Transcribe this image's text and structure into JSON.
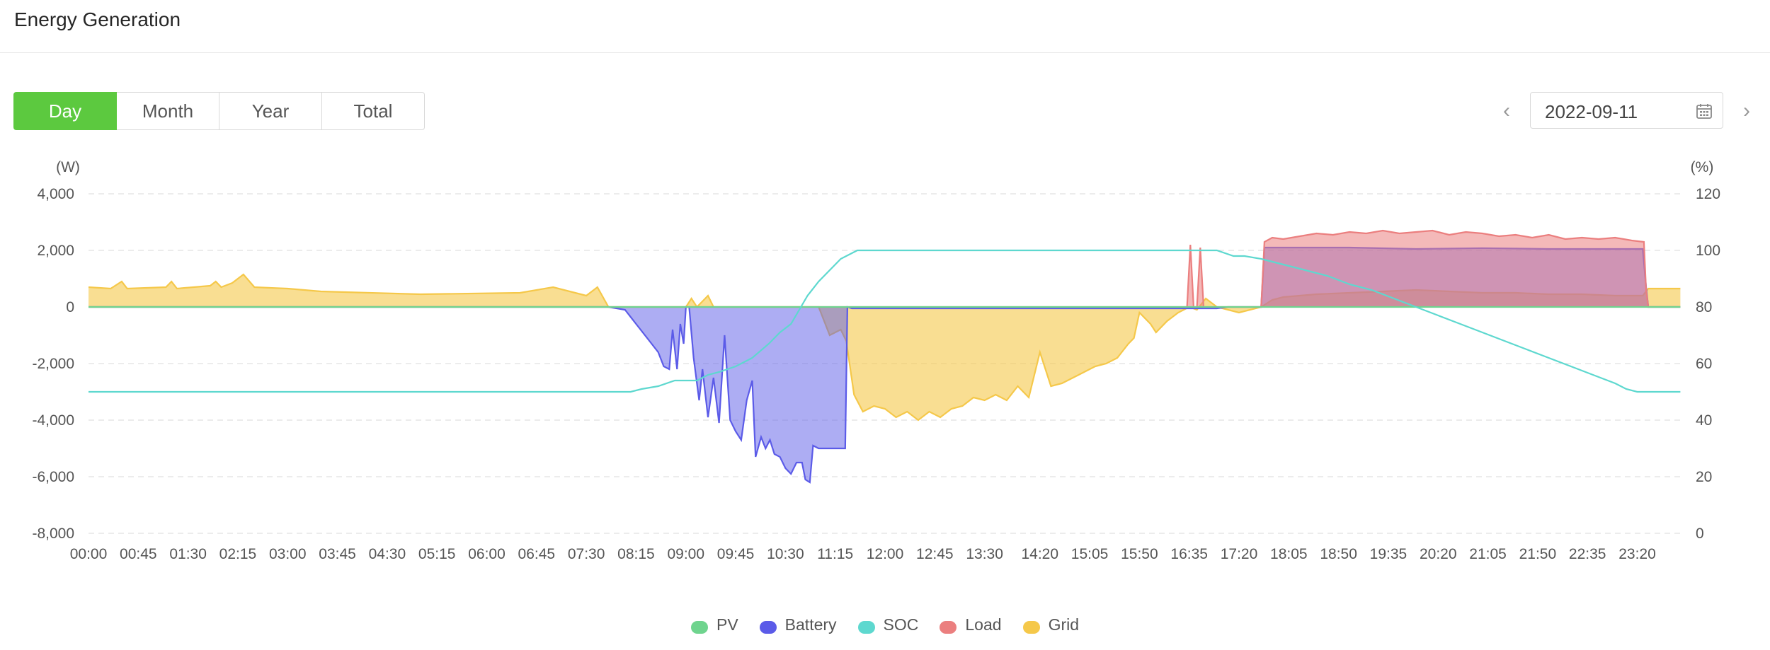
{
  "header": {
    "title": "Energy Generation"
  },
  "range_tabs": [
    {
      "label": "Day",
      "active": true
    },
    {
      "label": "Month",
      "active": false
    },
    {
      "label": "Year",
      "active": false
    },
    {
      "label": "Total",
      "active": false
    }
  ],
  "date_picker": {
    "value": "2022-09-11",
    "prev_icon": "chevron-left-icon",
    "next_icon": "chevron-right-icon",
    "icon": "calendar-icon"
  },
  "chart_data": {
    "type": "area",
    "left_axis_unit": "(W)",
    "right_axis_unit": "(%)",
    "ylim": [
      -8000,
      4000
    ],
    "y_ticks": [
      "4,000",
      "2,000",
      "0",
      "-2,000",
      "-4,000",
      "-6,000",
      "-8,000"
    ],
    "y2lim": [
      0,
      120
    ],
    "y2_ticks": [
      "120",
      "100",
      "80",
      "60",
      "40",
      "20",
      "0"
    ],
    "x_ticks": [
      "00:00",
      "00:45",
      "01:30",
      "02:15",
      "03:00",
      "03:45",
      "04:30",
      "05:15",
      "06:00",
      "06:45",
      "07:30",
      "08:15",
      "09:00",
      "09:45",
      "10:30",
      "11:15",
      "12:00",
      "12:45",
      "13:30",
      "14:20",
      "15:05",
      "15:50",
      "16:35",
      "17:20",
      "18:05",
      "18:50",
      "19:35",
      "20:20",
      "21:05",
      "21:50",
      "22:35",
      "23:20"
    ],
    "grid": true,
    "legend_position": "bottom",
    "series": [
      {
        "name": "PV",
        "color": "#6fd48e",
        "axis": "left",
        "points": [
          [
            "00:00",
            0
          ],
          [
            "23:59",
            0
          ]
        ]
      },
      {
        "name": "Battery",
        "color": "#5b5be8",
        "axis": "left",
        "points": [
          [
            "00:00",
            0
          ],
          [
            "07:50",
            0
          ],
          [
            "08:05",
            -100
          ],
          [
            "08:15",
            -600
          ],
          [
            "08:25",
            -1100
          ],
          [
            "08:35",
            -1600
          ],
          [
            "08:40",
            -2100
          ],
          [
            "08:45",
            -2200
          ],
          [
            "08:48",
            -800
          ],
          [
            "08:52",
            -2200
          ],
          [
            "08:55",
            -600
          ],
          [
            "08:58",
            -1300
          ],
          [
            "09:00",
            0
          ],
          [
            "09:03",
            0
          ],
          [
            "09:07",
            -1800
          ],
          [
            "09:12",
            -3300
          ],
          [
            "09:15",
            -2200
          ],
          [
            "09:20",
            -3900
          ],
          [
            "09:25",
            -2500
          ],
          [
            "09:30",
            -4100
          ],
          [
            "09:35",
            -1000
          ],
          [
            "09:40",
            -4000
          ],
          [
            "09:45",
            -4400
          ],
          [
            "09:50",
            -4700
          ],
          [
            "09:55",
            -3300
          ],
          [
            "10:00",
            -2600
          ],
          [
            "10:03",
            -5300
          ],
          [
            "10:08",
            -4600
          ],
          [
            "10:12",
            -5000
          ],
          [
            "10:16",
            -4700
          ],
          [
            "10:20",
            -5200
          ],
          [
            "10:25",
            -5300
          ],
          [
            "10:30",
            -5700
          ],
          [
            "10:35",
            -5900
          ],
          [
            "10:40",
            -5500
          ],
          [
            "10:45",
            -5500
          ],
          [
            "10:48",
            -6100
          ],
          [
            "10:52",
            -6200
          ],
          [
            "10:55",
            -4900
          ],
          [
            "11:00",
            -5000
          ],
          [
            "11:15",
            -5000
          ],
          [
            "11:24",
            -5000
          ],
          [
            "11:26",
            0
          ],
          [
            "11:30",
            -50
          ],
          [
            "17:00",
            -50
          ],
          [
            "17:10",
            0
          ],
          [
            "17:40",
            0
          ],
          [
            "17:43",
            2100
          ],
          [
            "18:30",
            2100
          ],
          [
            "19:00",
            2100
          ],
          [
            "20:00",
            2050
          ],
          [
            "21:00",
            2080
          ],
          [
            "22:00",
            2050
          ],
          [
            "23:00",
            2050
          ],
          [
            "23:25",
            2050
          ],
          [
            "23:28",
            700
          ],
          [
            "23:30",
            0
          ],
          [
            "23:59",
            0
          ]
        ]
      },
      {
        "name": "SOC",
        "color": "#5ed8cf",
        "axis": "right",
        "points": [
          [
            "00:00",
            50
          ],
          [
            "08:00",
            50
          ],
          [
            "08:10",
            50
          ],
          [
            "08:20",
            51
          ],
          [
            "08:35",
            52
          ],
          [
            "08:50",
            54
          ],
          [
            "09:10",
            54
          ],
          [
            "09:20",
            56
          ],
          [
            "09:30",
            57
          ],
          [
            "09:45",
            59
          ],
          [
            "10:00",
            62
          ],
          [
            "10:15",
            67
          ],
          [
            "10:25",
            71
          ],
          [
            "10:35",
            74
          ],
          [
            "10:50",
            84
          ],
          [
            "11:00",
            89
          ],
          [
            "11:10",
            93
          ],
          [
            "11:20",
            97
          ],
          [
            "11:35",
            100
          ],
          [
            "17:00",
            100
          ],
          [
            "17:15",
            98
          ],
          [
            "17:25",
            98
          ],
          [
            "17:40",
            97
          ],
          [
            "18:00",
            95
          ],
          [
            "18:20",
            93
          ],
          [
            "18:40",
            91
          ],
          [
            "19:00",
            88
          ],
          [
            "19:20",
            86
          ],
          [
            "19:40",
            83
          ],
          [
            "20:00",
            80
          ],
          [
            "20:20",
            77
          ],
          [
            "20:40",
            74
          ],
          [
            "21:00",
            71
          ],
          [
            "21:20",
            68
          ],
          [
            "21:40",
            65
          ],
          [
            "22:00",
            62
          ],
          [
            "22:20",
            59
          ],
          [
            "22:40",
            56
          ],
          [
            "23:00",
            53
          ],
          [
            "23:10",
            51
          ],
          [
            "23:20",
            50
          ],
          [
            "23:59",
            50
          ]
        ]
      },
      {
        "name": "Load",
        "color": "#eb7f7f",
        "axis": "left",
        "points": [
          [
            "00:00",
            0
          ],
          [
            "16:30",
            0
          ],
          [
            "16:33",
            0
          ],
          [
            "16:36",
            2200
          ],
          [
            "16:39",
            0
          ],
          [
            "16:42",
            0
          ],
          [
            "16:45",
            2100
          ],
          [
            "16:48",
            0
          ],
          [
            "17:40",
            0
          ],
          [
            "17:43",
            2300
          ],
          [
            "17:50",
            2450
          ],
          [
            "18:00",
            2400
          ],
          [
            "18:15",
            2500
          ],
          [
            "18:30",
            2600
          ],
          [
            "18:45",
            2550
          ],
          [
            "19:00",
            2650
          ],
          [
            "19:15",
            2600
          ],
          [
            "19:30",
            2700
          ],
          [
            "19:45",
            2600
          ],
          [
            "20:00",
            2650
          ],
          [
            "20:15",
            2700
          ],
          [
            "20:30",
            2550
          ],
          [
            "20:45",
            2650
          ],
          [
            "21:00",
            2600
          ],
          [
            "21:15",
            2500
          ],
          [
            "21:30",
            2550
          ],
          [
            "21:45",
            2450
          ],
          [
            "22:00",
            2550
          ],
          [
            "22:15",
            2400
          ],
          [
            "22:30",
            2450
          ],
          [
            "22:45",
            2400
          ],
          [
            "23:00",
            2450
          ],
          [
            "23:15",
            2350
          ],
          [
            "23:26",
            2300
          ],
          [
            "23:28",
            600
          ],
          [
            "23:30",
            0
          ],
          [
            "23:59",
            0
          ]
        ]
      },
      {
        "name": "Grid",
        "color": "#f5c84a",
        "axis": "left",
        "points": [
          [
            "00:00",
            700
          ],
          [
            "00:20",
            650
          ],
          [
            "00:30",
            900
          ],
          [
            "00:35",
            650
          ],
          [
            "01:10",
            700
          ],
          [
            "01:15",
            900
          ],
          [
            "01:20",
            650
          ],
          [
            "01:50",
            750
          ],
          [
            "01:55",
            900
          ],
          [
            "02:00",
            700
          ],
          [
            "02:10",
            850
          ],
          [
            "02:20",
            1150
          ],
          [
            "02:30",
            700
          ],
          [
            "03:00",
            650
          ],
          [
            "03:30",
            550
          ],
          [
            "05:00",
            450
          ],
          [
            "06:30",
            500
          ],
          [
            "07:00",
            700
          ],
          [
            "07:30",
            400
          ],
          [
            "07:40",
            700
          ],
          [
            "07:50",
            0
          ],
          [
            "09:00",
            0
          ],
          [
            "09:05",
            300
          ],
          [
            "09:10",
            0
          ],
          [
            "09:20",
            400
          ],
          [
            "09:25",
            0
          ],
          [
            "10:00",
            0
          ],
          [
            "11:00",
            0
          ],
          [
            "11:05",
            -500
          ],
          [
            "11:10",
            -1000
          ],
          [
            "11:15",
            -900
          ],
          [
            "11:20",
            -800
          ],
          [
            "11:25",
            -1200
          ],
          [
            "11:32",
            -3100
          ],
          [
            "11:40",
            -3700
          ],
          [
            "11:50",
            -3500
          ],
          [
            "12:00",
            -3600
          ],
          [
            "12:10",
            -3900
          ],
          [
            "12:20",
            -3700
          ],
          [
            "12:30",
            -4000
          ],
          [
            "12:40",
            -3700
          ],
          [
            "12:50",
            -3900
          ],
          [
            "13:00",
            -3600
          ],
          [
            "13:10",
            -3500
          ],
          [
            "13:20",
            -3200
          ],
          [
            "13:30",
            -3300
          ],
          [
            "13:40",
            -3100
          ],
          [
            "13:50",
            -3300
          ],
          [
            "14:00",
            -2800
          ],
          [
            "14:10",
            -3200
          ],
          [
            "14:20",
            -1600
          ],
          [
            "14:30",
            -2800
          ],
          [
            "14:40",
            -2700
          ],
          [
            "14:50",
            -2500
          ],
          [
            "15:00",
            -2300
          ],
          [
            "15:10",
            -2100
          ],
          [
            "15:20",
            -2000
          ],
          [
            "15:30",
            -1800
          ],
          [
            "15:40",
            -1300
          ],
          [
            "15:45",
            -1100
          ],
          [
            "15:50",
            -200
          ],
          [
            "16:00",
            -600
          ],
          [
            "16:05",
            -900
          ],
          [
            "16:15",
            -500
          ],
          [
            "16:25",
            -200
          ],
          [
            "16:35",
            0
          ],
          [
            "16:42",
            -100
          ],
          [
            "16:50",
            300
          ],
          [
            "17:00",
            0
          ],
          [
            "17:20",
            -200
          ],
          [
            "17:40",
            0
          ],
          [
            "17:50",
            250
          ],
          [
            "18:00",
            350
          ],
          [
            "18:30",
            450
          ],
          [
            "19:00",
            500
          ],
          [
            "19:30",
            550
          ],
          [
            "20:00",
            600
          ],
          [
            "20:30",
            550
          ],
          [
            "21:00",
            500
          ],
          [
            "21:30",
            500
          ],
          [
            "22:00",
            450
          ],
          [
            "22:30",
            450
          ],
          [
            "23:00",
            400
          ],
          [
            "23:25",
            400
          ],
          [
            "23:30",
            650
          ],
          [
            "23:59",
            650
          ]
        ]
      }
    ]
  }
}
